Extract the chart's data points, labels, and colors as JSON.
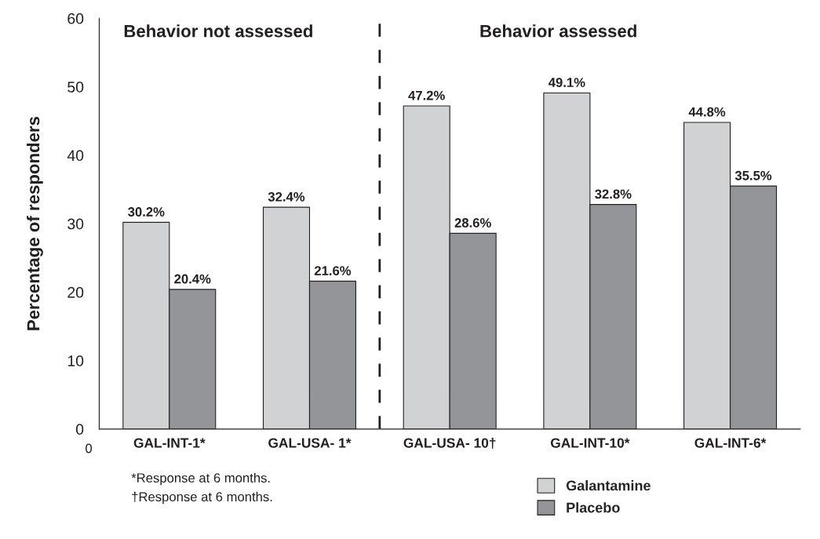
{
  "chart_data": {
    "type": "bar",
    "categories": [
      "GAL-INT-1*",
      "GAL-USA- 1*",
      "GAL-USA- 10†",
      "GAL-INT-10*",
      "GAL-INT-6*"
    ],
    "series": [
      {
        "name": "Galantamine",
        "color": "#d1d2d4",
        "values": [
          30.2,
          32.4,
          47.2,
          49.1,
          44.8
        ],
        "value_labels": [
          "30.2%",
          "32.4%",
          "47.2%",
          "49.1%",
          "44.8%"
        ]
      },
      {
        "name": "Placebo",
        "color": "#939598",
        "values": [
          20.4,
          21.6,
          28.6,
          32.8,
          35.5
        ],
        "value_labels": [
          "20.4%",
          "21.6%",
          "28.6%",
          "32.8%",
          "35.5%"
        ]
      }
    ],
    "ylabel": "Percentage of responders",
    "ylim": [
      0,
      60
    ],
    "yticks": [
      0,
      10,
      20,
      30,
      40,
      50,
      60
    ],
    "annotations": [
      "Behavior not assessed",
      "Behavior assessed",
      "0",
      "*Response at 6 months.",
      "†Response at 6 months."
    ],
    "legend": "bottom right",
    "grid": false
  }
}
